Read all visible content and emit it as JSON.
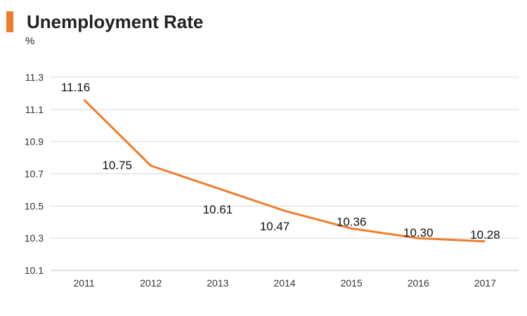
{
  "title": "Unemployment Rate",
  "unit": "%",
  "colors": {
    "accent": "#ee7d2e",
    "line": "#ee7d2e",
    "grid": "#d9d9d9",
    "axis": "#bfbfbf"
  },
  "chart_data": {
    "type": "line",
    "title": "Unemployment Rate",
    "ylabel": "%",
    "xlabel": "",
    "x": [
      "2011",
      "2012",
      "2013",
      "2014",
      "2015",
      "2016",
      "2017"
    ],
    "series": [
      {
        "values": [
          11.16,
          10.75,
          10.61,
          10.47,
          10.36,
          10.3,
          10.28
        ]
      }
    ],
    "data_labels": [
      "11.16",
      "10.75",
      "10.61",
      "10.47",
      "10.36",
      "10.30",
      "10.28"
    ],
    "ylim": [
      10.1,
      11.3
    ],
    "yticks": [
      "10.1",
      "10.3",
      "10.5",
      "10.7",
      "10.9",
      "11.1",
      "11.3"
    ],
    "grid": true,
    "legend": "none"
  }
}
